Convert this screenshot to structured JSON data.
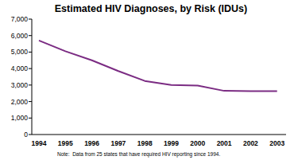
{
  "chart_data": {
    "type": "line",
    "title": "Estimated HIV Diagnoses, by Risk (IDUs)",
    "categories": [
      "1994",
      "1995",
      "1996",
      "1997",
      "1998",
      "1999",
      "2000",
      "2001",
      "2002",
      "2003"
    ],
    "values": [
      5700,
      5050,
      4500,
      3850,
      3250,
      3000,
      2970,
      2650,
      2630,
      2630
    ],
    "color": "#7b2c83",
    "ylim": [
      0,
      7000
    ],
    "yticks": [
      0,
      {
        "value": 1000,
        "label": "1,000"
      },
      {
        "value": 2000,
        "label": "2,000"
      },
      {
        "value": 3000,
        "label": "3,000"
      },
      {
        "value": 4000,
        "label": "4,000"
      },
      {
        "value": 5000,
        "label": "5,000"
      },
      {
        "value": 6000,
        "label": "6,000"
      },
      {
        "value": 7000,
        "label": "7,000"
      }
    ],
    "grid": false,
    "annotations": [
      "Note:  Data from 25 states that have required HIV reporting since 1994."
    ]
  }
}
